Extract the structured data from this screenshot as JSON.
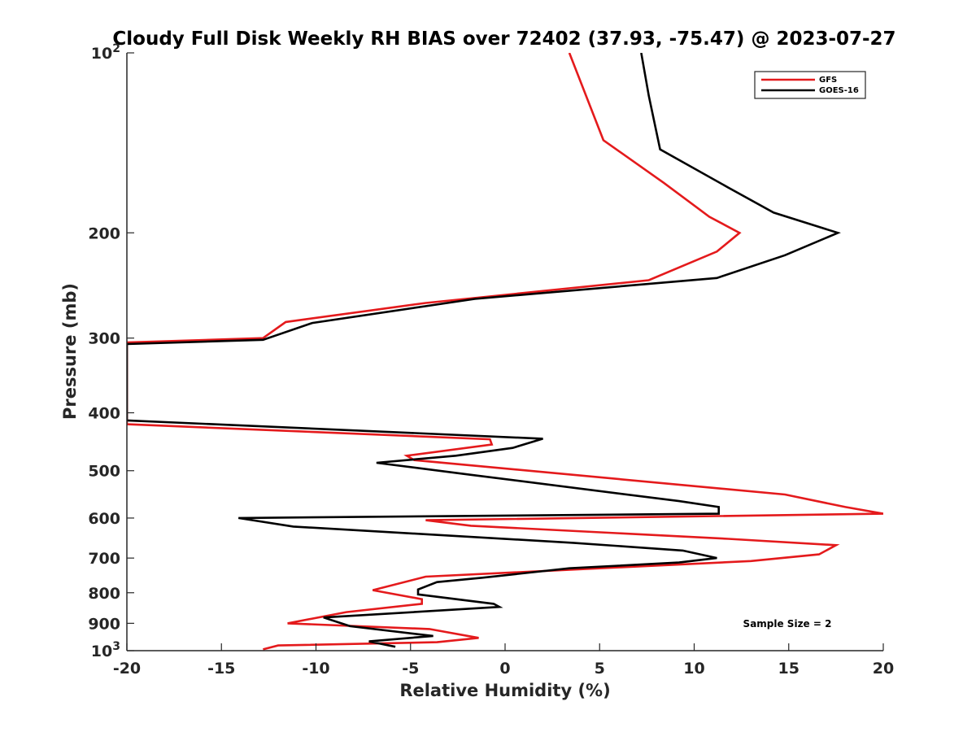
{
  "chart_data": {
    "type": "line",
    "title": "Cloudy Full Disk Weekly RH BIAS over 72402 (37.93, -75.47) @ 2023-07-27",
    "xlabel": "Relative Humidity (%)",
    "ylabel": "Pressure (mb)",
    "xlim": [
      -20,
      20
    ],
    "ylim": [
      100,
      1000
    ],
    "yscale": "log",
    "y_reversed": true,
    "xticks": [
      -20,
      -15,
      -10,
      -5,
      0,
      5,
      10,
      15,
      20
    ],
    "xtick_labels": [
      "-20",
      "-15",
      "-10",
      "-5",
      "0",
      "5",
      "10",
      "15",
      "20"
    ],
    "yticks": [
      100,
      200,
      300,
      400,
      500,
      600,
      700,
      800,
      900,
      1000
    ],
    "ytick_labels": [
      {
        "base": "10",
        "exp": "2"
      },
      {
        "base": "200"
      },
      {
        "base": "300"
      },
      {
        "base": "400"
      },
      {
        "base": "500"
      },
      {
        "base": "600"
      },
      {
        "base": "700"
      },
      {
        "base": "800"
      },
      {
        "base": "900"
      },
      {
        "base": "10",
        "exp": "3"
      }
    ],
    "grid": false,
    "legend_position": "top-right",
    "annotation": "Sample Size = 2",
    "series": [
      {
        "name": "GFS",
        "color": "#e41a1c",
        "x": [
          3.4,
          5.2,
          8.4,
          10.8,
          12.4,
          11.2,
          7.6,
          -4.2,
          -11.6,
          -12.8,
          -20,
          -20,
          -20,
          -0.8,
          -0.7,
          -5.2,
          -4.8,
          14.8,
          18.0,
          20.0,
          -4.2,
          -1.8,
          11.8,
          17.5,
          16.6,
          13.0,
          -4.2,
          -7.0,
          -4.4,
          -4.4,
          -8.4,
          -11.5,
          -4.0,
          -1.4,
          -3.6,
          -12.0,
          -12.8
        ],
        "y": [
          100,
          140,
          165,
          188,
          200,
          215,
          240,
          262,
          282,
          300,
          305,
          412,
          418,
          443,
          452,
          472,
          480,
          548,
          575,
          590,
          605,
          618,
          650,
          666,
          690,
          708,
          752,
          792,
          820,
          835,
          862,
          900,
          920,
          952,
          968,
          980,
          995
        ]
      },
      {
        "name": "GOES-16",
        "color": "#000000",
        "x": [
          7.2,
          7.6,
          8.2,
          11.8,
          14.2,
          17.6,
          14.8,
          11.2,
          -1.6,
          -10.2,
          -12.8,
          -20,
          -20,
          2.0,
          0.4,
          -2.6,
          -6.8,
          -1.8,
          9.2,
          11.3,
          11.3,
          -14.1,
          -11.2,
          3.6,
          9.4,
          11.2,
          9.2,
          3.4,
          -1.2,
          -3.6,
          -4.6,
          -4.6,
          -0.6,
          -0.3,
          -9.6,
          -8.2,
          -3.8,
          -7.2,
          -5.8
        ],
        "y": [
          100,
          118,
          145,
          168,
          185,
          200,
          218,
          238,
          258,
          283,
          302,
          307,
          412,
          442,
          458,
          472,
          485,
          508,
          562,
          575,
          590,
          600,
          620,
          660,
          680,
          700,
          712,
          728,
          755,
          768,
          790,
          805,
          835,
          845,
          880,
          910,
          945,
          965,
          985
        ]
      }
    ]
  }
}
